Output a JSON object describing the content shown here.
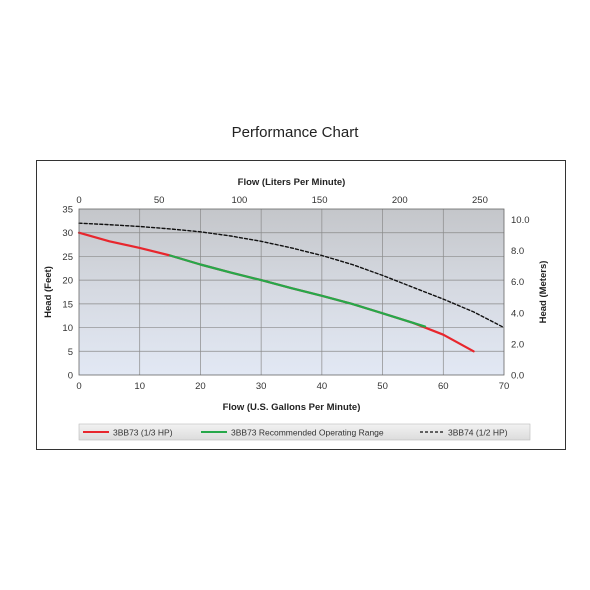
{
  "chart_data": {
    "type": "line",
    "title": "Performance Chart",
    "xlabel": "Flow (U.S. Gallons Per Minute)",
    "x2label": "Flow (Liters Per Minute)",
    "ylabel": "Head (Feet)",
    "y2label": "Head (Meters)",
    "xlim": [
      0,
      70
    ],
    "ylim": [
      0,
      35
    ],
    "x2lim": [
      0,
      265
    ],
    "y2lim": [
      0,
      10.67
    ],
    "xticks": [
      0,
      10,
      20,
      30,
      40,
      50,
      60,
      70
    ],
    "yticks": [
      0,
      5,
      10,
      15,
      20,
      25,
      30,
      35
    ],
    "x2ticks": [
      0,
      50,
      100,
      150,
      200,
      250
    ],
    "y2ticks": [
      "0.0",
      "2.0",
      "4.0",
      "6.0",
      "8.0",
      "10.0"
    ],
    "grid": true,
    "legend_position": "bottom",
    "series": [
      {
        "name": "3BB73 (1/3 HP)",
        "color": "#e8262d",
        "style": "solid",
        "x": [
          0,
          5,
          10,
          15,
          20,
          25,
          30,
          35,
          40,
          45,
          50,
          55,
          60,
          65
        ],
        "y": [
          30,
          28.2,
          26.8,
          25.2,
          23.3,
          21.6,
          20,
          18.3,
          16.7,
          15,
          13,
          11,
          8.5,
          5
        ]
      },
      {
        "name": "3BB73 Recommended Operating Range",
        "color": "#26a84a",
        "style": "solid",
        "x": [
          15,
          20,
          25,
          30,
          35,
          40,
          45,
          50,
          55,
          57
        ],
        "y": [
          25.2,
          23.3,
          21.6,
          20,
          18.3,
          16.7,
          15,
          13,
          11,
          10.2
        ]
      },
      {
        "name": "3BB74 (1/2 HP)",
        "color": "#111111",
        "style": "dashed",
        "x": [
          0,
          5,
          10,
          15,
          20,
          25,
          30,
          35,
          40,
          45,
          50,
          55,
          60,
          65,
          70
        ],
        "y": [
          32,
          31.7,
          31.3,
          30.8,
          30.2,
          29.3,
          28.2,
          26.8,
          25.2,
          23.3,
          21,
          18.5,
          16,
          13.3,
          10
        ]
      }
    ]
  }
}
